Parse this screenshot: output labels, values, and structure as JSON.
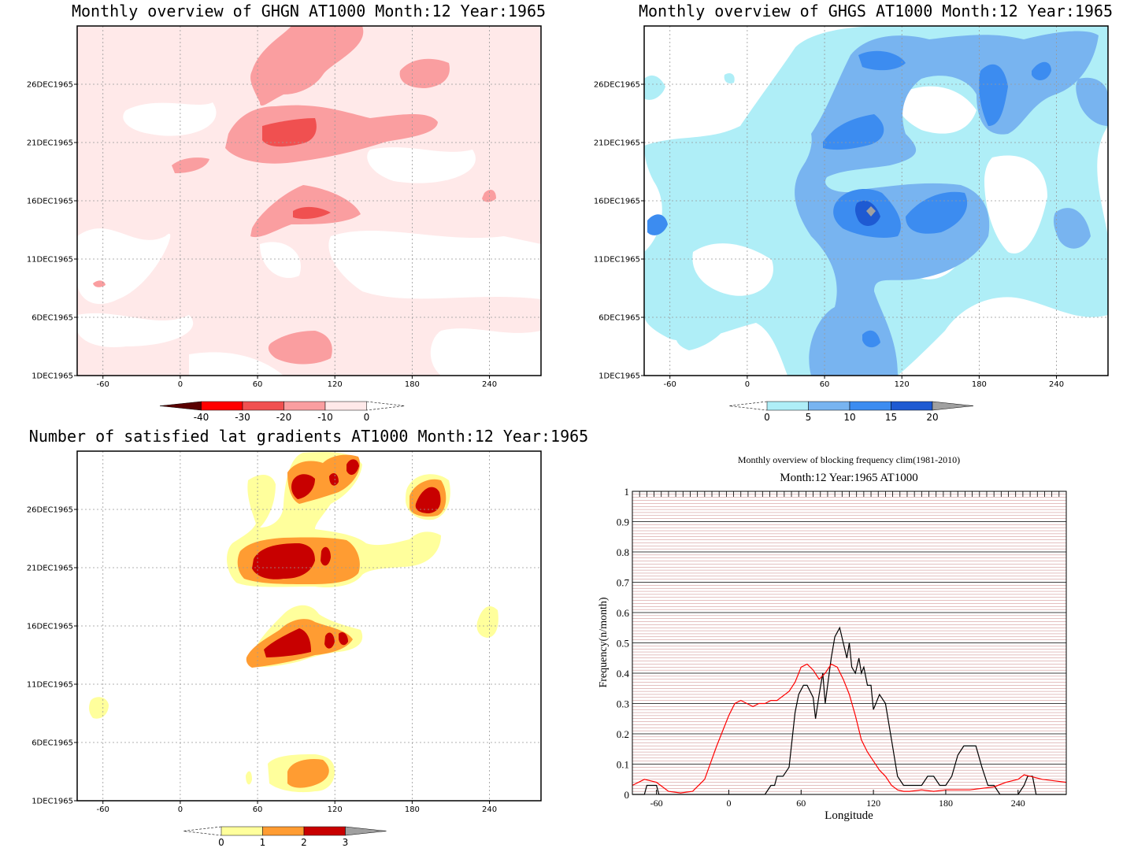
{
  "chart_data": [
    {
      "type": "heatmap",
      "title": "Monthly overview of GHGN AT1000 Month:12 Year:1965",
      "xlim": [
        -80,
        280
      ],
      "x_ticks": [
        "-60",
        "0",
        "60",
        "120",
        "180",
        "240"
      ],
      "x_tick_values": [
        -60,
        0,
        60,
        120,
        180,
        240
      ],
      "ylim": [
        1,
        31
      ],
      "y_ticks": [
        "1DEC1965",
        "6DEC1965",
        "11DEC1965",
        "16DEC1965",
        "21DEC1965",
        "26DEC1965"
      ],
      "y_tick_values": [
        1,
        6,
        11,
        16,
        21,
        26
      ],
      "grid": true,
      "colorbar": {
        "labels": [
          "-40",
          "-30",
          "-20",
          "-10",
          "0"
        ],
        "colors": [
          "#5a0000",
          "#ff0000",
          "#f05050",
          "#fa9ea0",
          "#ffe9e9"
        ]
      },
      "regions": [
        {
          "level": 1,
          "color": "#ffe9e9",
          "label": "background",
          "x": [
            -80,
            280
          ],
          "y": [
            1,
            31
          ]
        },
        {
          "level": 2,
          "color": "#fa9ea0",
          "x": [
            40,
            130
          ],
          "y": [
            19.5,
            31
          ]
        },
        {
          "level": 2,
          "color": "#fa9ea0",
          "x": [
            55,
            110
          ],
          "y": [
            13.5,
            17.5
          ]
        },
        {
          "level": 2,
          "color": "#fa9ea0",
          "x": [
            70,
            115
          ],
          "y": [
            2,
            4.5
          ]
        },
        {
          "level": 3,
          "color": "#f05050",
          "x": [
            65,
            95
          ],
          "y": [
            20,
            22
          ]
        },
        {
          "level": 3,
          "color": "#f05050",
          "x": [
            85,
            100
          ],
          "y": [
            14.5,
            15.8
          ]
        }
      ]
    },
    {
      "type": "heatmap",
      "title": "Monthly overview of GHGS AT1000 Month:12 Year:1965",
      "xlim": [
        -80,
        280
      ],
      "x_ticks": [
        "-60",
        "0",
        "60",
        "120",
        "180",
        "240"
      ],
      "x_tick_values": [
        -60,
        0,
        60,
        120,
        180,
        240
      ],
      "ylim": [
        1,
        31
      ],
      "y_ticks": [
        "1DEC1965",
        "6DEC1965",
        "11DEC1965",
        "16DEC1965",
        "21DEC1965",
        "26DEC1965"
      ],
      "y_tick_values": [
        1,
        6,
        11,
        16,
        21,
        26
      ],
      "grid": true,
      "colorbar": {
        "labels": [
          "0",
          "5",
          "10",
          "15",
          "20"
        ],
        "colors": [
          "#afeef7",
          "#78b4f0",
          "#3c8cf0",
          "#1e5ad2",
          "#a0a0a0"
        ]
      },
      "regions": [
        {
          "level": 1,
          "color": "#afeef7",
          "x": [
            -80,
            280
          ],
          "y": [
            1,
            31
          ]
        },
        {
          "level": 2,
          "color": "#78b4f0",
          "x": [
            30,
            160
          ],
          "y": [
            1,
            30
          ]
        },
        {
          "level": 3,
          "color": "#3c8cf0",
          "x": [
            60,
            150
          ],
          "y": [
            13,
            24
          ]
        },
        {
          "level": 4,
          "color": "#1e5ad2",
          "x": [
            85,
            105
          ],
          "y": [
            14.5,
            16.5
          ]
        },
        {
          "level": 5,
          "color": "#a0a0a0",
          "x": [
            95,
            100
          ],
          "y": [
            15.3,
            15.8
          ]
        }
      ]
    },
    {
      "type": "heatmap",
      "title": "Number of satisfied lat gradients AT1000 Month:12 Year:1965",
      "xlim": [
        -80,
        280
      ],
      "x_ticks": [
        "-60",
        "0",
        "60",
        "120",
        "180",
        "240"
      ],
      "x_tick_values": [
        -60,
        0,
        60,
        120,
        180,
        240
      ],
      "ylim": [
        1,
        31
      ],
      "y_ticks": [
        "1DEC1965",
        "6DEC1965",
        "11DEC1965",
        "16DEC1965",
        "21DEC1965",
        "26DEC1965"
      ],
      "y_tick_values": [
        1,
        6,
        11,
        16,
        21,
        26
      ],
      "grid": true,
      "colorbar": {
        "labels": [
          "0",
          "1",
          "2",
          "3"
        ],
        "colors": [
          "#ffff9c",
          "#ff9c32",
          "#c80000",
          "#a0a0a0"
        ]
      },
      "regions": [
        {
          "level": 1,
          "color": "#ffff9c",
          "x": [
            35,
            140
          ],
          "y": [
            19.5,
            31
          ]
        },
        {
          "level": 1,
          "color": "#ffff9c",
          "x": [
            50,
            140
          ],
          "y": [
            13,
            17.5
          ]
        },
        {
          "level": 1,
          "color": "#ffff9c",
          "x": [
            65,
            120
          ],
          "y": [
            1,
            4
          ]
        },
        {
          "level": 1,
          "color": "#ffff9c",
          "x": [
            180,
            210
          ],
          "y": [
            25,
            28.5
          ]
        },
        {
          "level": 1,
          "color": "#ffff9c",
          "x": [
            -65,
            -55
          ],
          "y": [
            8.5,
            10
          ]
        },
        {
          "level": 1,
          "color": "#ffff9c",
          "x": [
            235,
            245
          ],
          "y": [
            15,
            17.5
          ]
        },
        {
          "level": 2,
          "color": "#ff9c32",
          "x": [
            40,
            120
          ],
          "y": [
            20,
            23
          ]
        },
        {
          "level": 2,
          "color": "#ff9c32",
          "x": [
            55,
            115
          ],
          "y": [
            13.5,
            16
          ]
        },
        {
          "level": 2,
          "color": "#ff9c32",
          "x": [
            85,
            120
          ],
          "y": [
            1.5,
            3.5
          ]
        },
        {
          "level": 2,
          "color": "#ff9c32",
          "x": [
            85,
            140
          ],
          "y": [
            27,
            31
          ]
        },
        {
          "level": 3,
          "color": "#c80000",
          "x": [
            55,
            100
          ],
          "y": [
            20.5,
            22.5
          ]
        },
        {
          "level": 3,
          "color": "#c80000",
          "x": [
            65,
            100
          ],
          "y": [
            14,
            15.5
          ]
        },
        {
          "level": 3,
          "color": "#c80000",
          "x": [
            185,
            200
          ],
          "y": [
            25.8,
            27.8
          ]
        }
      ]
    },
    {
      "type": "line",
      "title": "Monthly overview of blocking frequency clim(1981-2010)",
      "subtitle": "Month:12 Year:1965  AT1000",
      "xlabel": "Longitude",
      "ylabel": "Frequency(n/month)",
      "xlim": [
        -80,
        280
      ],
      "ylim": [
        0,
        1
      ],
      "x_ticks": [
        "-60",
        "0",
        "60",
        "120",
        "180",
        "240"
      ],
      "x_tick_values": [
        -60,
        0,
        60,
        120,
        180,
        240
      ],
      "y_ticks": [
        "0",
        "0.1",
        "0.2",
        "0.3",
        "0.4",
        "0.5",
        "0.6",
        "0.7",
        "0.8",
        "0.9",
        "1"
      ],
      "y_tick_values": [
        0,
        0.1,
        0.2,
        0.3,
        0.4,
        0.5,
        0.6,
        0.7,
        0.8,
        0.9,
        1
      ],
      "grid": true,
      "series": [
        {
          "color": "#000000",
          "x": [
            -80,
            -70,
            -68,
            -60,
            -58,
            -50,
            30,
            35,
            38,
            40,
            45,
            50,
            55,
            58,
            62,
            65,
            70,
            72,
            75,
            78,
            80,
            85,
            88,
            92,
            95,
            98,
            100,
            102,
            105,
            108,
            110,
            112,
            115,
            118,
            120,
            122,
            125,
            130,
            135,
            140,
            145,
            150,
            160,
            165,
            170,
            175,
            180,
            185,
            190,
            195,
            200,
            205,
            210,
            215,
            220,
            225,
            230,
            235,
            240,
            245,
            248,
            252,
            255,
            260,
            280
          ],
          "y": [
            0,
            0,
            0.03,
            0.03,
            0,
            0,
            0,
            0.03,
            0.03,
            0.06,
            0.06,
            0.09,
            0.27,
            0.33,
            0.36,
            0.36,
            0.32,
            0.25,
            0.33,
            0.4,
            0.3,
            0.45,
            0.52,
            0.55,
            0.5,
            0.45,
            0.5,
            0.42,
            0.4,
            0.45,
            0.4,
            0.42,
            0.36,
            0.36,
            0.28,
            0.3,
            0.33,
            0.3,
            0.18,
            0.06,
            0.03,
            0.03,
            0.03,
            0.06,
            0.06,
            0.03,
            0.03,
            0.06,
            0.13,
            0.16,
            0.16,
            0.16,
            0.09,
            0.03,
            0.03,
            0,
            0,
            0,
            0,
            0.03,
            0.06,
            0.06,
            0,
            0,
            0
          ]
        },
        {
          "color": "#ff0000",
          "x": [
            -80,
            -70,
            -60,
            -50,
            -40,
            -30,
            -20,
            -10,
            0,
            5,
            10,
            15,
            20,
            25,
            30,
            35,
            40,
            50,
            55,
            60,
            65,
            70,
            75,
            80,
            85,
            90,
            95,
            100,
            105,
            110,
            115,
            120,
            125,
            130,
            135,
            140,
            145,
            150,
            160,
            170,
            180,
            190,
            200,
            210,
            220,
            230,
            240,
            245,
            250,
            255,
            260,
            270,
            280
          ],
          "y": [
            0.03,
            0.05,
            0.04,
            0.01,
            0.005,
            0.01,
            0.05,
            0.16,
            0.26,
            0.3,
            0.31,
            0.3,
            0.29,
            0.3,
            0.3,
            0.31,
            0.31,
            0.34,
            0.37,
            0.42,
            0.43,
            0.41,
            0.38,
            0.4,
            0.43,
            0.42,
            0.38,
            0.33,
            0.26,
            0.18,
            0.14,
            0.11,
            0.08,
            0.06,
            0.03,
            0.015,
            0.01,
            0.01,
            0.015,
            0.01,
            0.015,
            0.015,
            0.015,
            0.02,
            0.025,
            0.04,
            0.05,
            0.065,
            0.06,
            0.055,
            0.05,
            0.045,
            0.04
          ]
        }
      ]
    }
  ]
}
